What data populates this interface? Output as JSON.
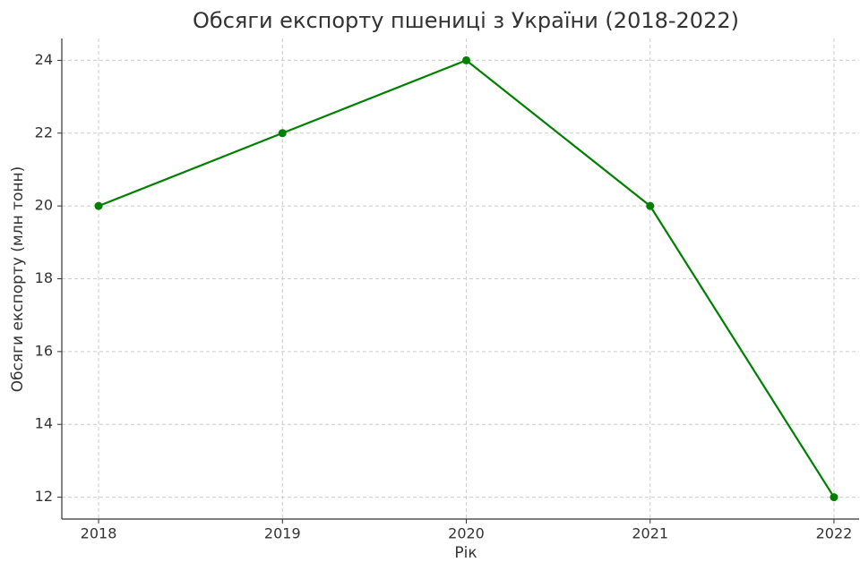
{
  "chart_data": {
    "type": "line",
    "title": "Обсяги експорту пшениці з України (2018-2022)",
    "x_label": "Рік",
    "y_label": "Обсяги експорту (млн тонн)",
    "x": [
      2018,
      2019,
      2020,
      2021,
      2022
    ],
    "series": [
      {
        "name": "Обсяги експорту",
        "color": "#008000",
        "values": [
          20,
          22,
          24,
          20,
          12
        ]
      }
    ],
    "xlim": [
      2017.8,
      2022.2
    ],
    "xticks": [
      2018,
      2019,
      2020,
      2021,
      2022
    ],
    "ylim": [
      11.4,
      24.6
    ],
    "yticks": [
      12,
      14,
      16,
      18,
      20,
      22,
      24
    ],
    "grid": true
  }
}
